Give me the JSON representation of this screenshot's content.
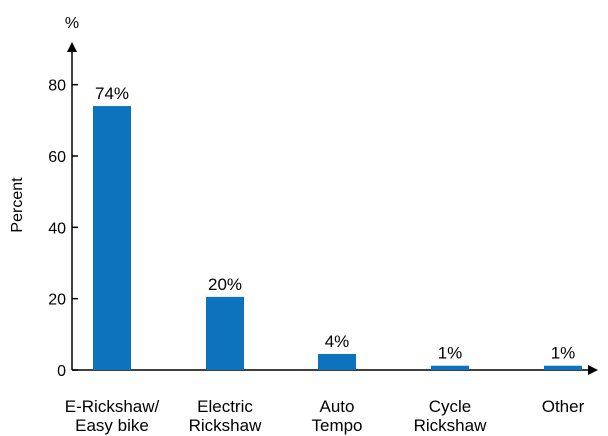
{
  "chart_data": {
    "type": "bar",
    "unit_label": "%",
    "ylabel": "Percent",
    "ylim": [
      0,
      90
    ],
    "yticks": [
      0,
      20,
      40,
      60,
      80
    ],
    "categories": [
      [
        "E-Rickshaw/",
        "Easy bike"
      ],
      [
        "Electric",
        "Rickshaw"
      ],
      [
        "Auto",
        "Tempo"
      ],
      [
        "Cycle",
        "Rickshaw"
      ],
      [
        "Other"
      ]
    ],
    "values": [
      74,
      20.5,
      4.5,
      1.2,
      1.2
    ],
    "data_labels": [
      "74%",
      "20%",
      "4%",
      "1%",
      "1%"
    ],
    "bar_color": "#0e73bd",
    "grid": false,
    "legend": "none"
  }
}
